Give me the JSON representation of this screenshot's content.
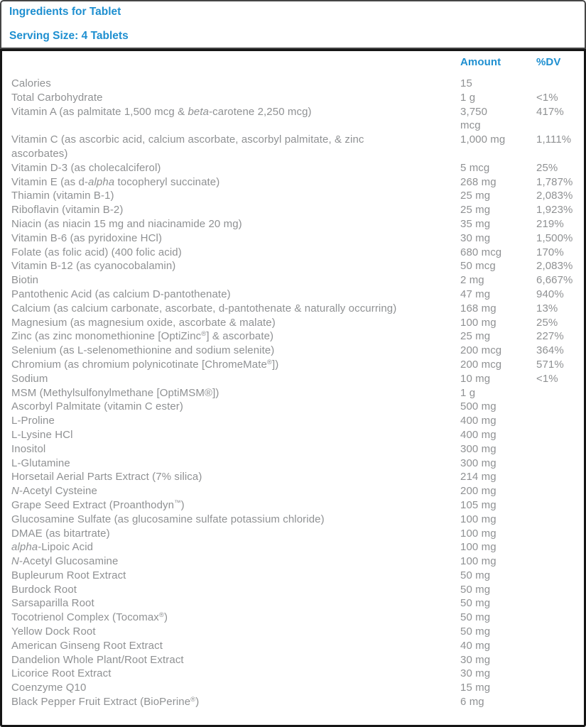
{
  "colors": {
    "accent": "#1e8fd0",
    "body_text": "#8f9193",
    "header_border": "#454545",
    "table_border": "#151515"
  },
  "header": {
    "title": "Ingredients for Tablet",
    "serving_size": "Serving Size: 4 Tablets"
  },
  "table": {
    "columns": {
      "amount": "Amount",
      "dv": "%DV"
    },
    "rows": [
      {
        "name": [
          {
            "t": "Calories"
          }
        ],
        "amount": "15",
        "dv": ""
      },
      {
        "name": [
          {
            "t": "Total Carbohydrate"
          }
        ],
        "amount": "1 g",
        "dv": "<1%"
      },
      {
        "name": [
          {
            "t": "Vitamin A (as palmitate 1,500 mcg & "
          },
          {
            "t": "beta",
            "i": true
          },
          {
            "t": "-carotene 2,250 mcg)"
          }
        ],
        "amount": "3,750 mcg",
        "dv": "417%"
      },
      {
        "name": [
          {
            "t": "Vitamin C (as ascorbic acid, calcium ascorbate, ascorbyl palmitate, & zinc ascorbates)"
          }
        ],
        "amount": "1,000 mg",
        "dv": "1,111%"
      },
      {
        "name": [
          {
            "t": "Vitamin D-3 (as cholecalciferol)"
          }
        ],
        "amount": "5 mcg",
        "dv": "25%"
      },
      {
        "name": [
          {
            "t": "Vitamin E (as d-"
          },
          {
            "t": "alpha",
            "i": true
          },
          {
            "t": " tocopheryl succinate)"
          }
        ],
        "amount": "268 mg",
        "dv": "1,787%"
      },
      {
        "name": [
          {
            "t": "Thiamin (vitamin B-1)"
          }
        ],
        "amount": "25 mg",
        "dv": "2,083%"
      },
      {
        "name": [
          {
            "t": "Riboflavin (vitamin B-2)"
          }
        ],
        "amount": "25 mg",
        "dv": "1,923%"
      },
      {
        "name": [
          {
            "t": "Niacin (as niacin 15 mg and niacinamide 20 mg)"
          }
        ],
        "amount": "35 mg",
        "dv": "219%"
      },
      {
        "name": [
          {
            "t": "Vitamin B-6 (as pyridoxine HCl)"
          }
        ],
        "amount": "30 mg",
        "dv": "1,500%"
      },
      {
        "name": [
          {
            "t": "Folate (as folic acid) (400 folic acid)"
          }
        ],
        "amount": "680 mcg",
        "dv": "170%"
      },
      {
        "name": [
          {
            "t": "Vitamin B-12 (as cyanocobalamin)"
          }
        ],
        "amount": "50 mcg",
        "dv": "2,083%"
      },
      {
        "name": [
          {
            "t": "Biotin"
          }
        ],
        "amount": "2 mg",
        "dv": "6,667%"
      },
      {
        "name": [
          {
            "t": "Pantothenic Acid (as calcium D-pantothenate)"
          }
        ],
        "amount": "47 mg",
        "dv": "940%"
      },
      {
        "name": [
          {
            "t": "Calcium (as calcium carbonate, ascorbate, d-pantothenate & naturally occurring)"
          }
        ],
        "amount": "168 mg",
        "dv": "13%"
      },
      {
        "name": [
          {
            "t": "Magnesium (as magnesium oxide, ascorbate & malate)"
          }
        ],
        "amount": "100 mg",
        "dv": "25%"
      },
      {
        "name": [
          {
            "t": "Zinc (as zinc monomethionine [OptiZinc"
          },
          {
            "t": "®",
            "sup": true
          },
          {
            "t": "] & ascorbate)"
          }
        ],
        "amount": "25 mg",
        "dv": "227%"
      },
      {
        "name": [
          {
            "t": "Selenium (as L-selenomethionine and sodium selenite)"
          }
        ],
        "amount": "200 mcg",
        "dv": "364%"
      },
      {
        "name": [
          {
            "t": "Chromium (as chromium polynicotinate [ChromeMate"
          },
          {
            "t": "®",
            "sup": true
          },
          {
            "t": "])"
          }
        ],
        "amount": "200 mcg",
        "dv": "571%"
      },
      {
        "name": [
          {
            "t": "Sodium"
          }
        ],
        "amount": "10 mg",
        "dv": "<1%"
      },
      {
        "name": [
          {
            "t": "MSM (Methylsulfonylmethane [OptiMSM®])"
          }
        ],
        "amount": "1 g",
        "dv": ""
      },
      {
        "name": [
          {
            "t": "Ascorbyl Palmitate (vitamin C ester)"
          }
        ],
        "amount": "500 mg",
        "dv": ""
      },
      {
        "name": [
          {
            "t": "L-Proline"
          }
        ],
        "amount": "400 mg",
        "dv": ""
      },
      {
        "name": [
          {
            "t": "L-Lysine HCl"
          }
        ],
        "amount": "400 mg",
        "dv": ""
      },
      {
        "name": [
          {
            "t": "Inositol"
          }
        ],
        "amount": "300 mg",
        "dv": ""
      },
      {
        "name": [
          {
            "t": "L-Glutamine"
          }
        ],
        "amount": "300 mg",
        "dv": ""
      },
      {
        "name": [
          {
            "t": "Horsetail Aerial Parts Extract (7% silica)"
          }
        ],
        "amount": "214 mg",
        "dv": ""
      },
      {
        "name": [
          {
            "t": "N",
            "i": true
          },
          {
            "t": "-Acetyl Cysteine"
          }
        ],
        "amount": "200 mg",
        "dv": ""
      },
      {
        "name": [
          {
            "t": "Grape Seed Extract (Proanthodyn"
          },
          {
            "t": "™",
            "sup": true
          },
          {
            "t": ")"
          }
        ],
        "amount": "105 mg",
        "dv": ""
      },
      {
        "name": [
          {
            "t": "Glucosamine Sulfate (as glucosamine sulfate potassium chloride)"
          }
        ],
        "amount": "100 mg",
        "dv": ""
      },
      {
        "name": [
          {
            "t": "DMAE (as bitartrate)"
          }
        ],
        "amount": "100 mg",
        "dv": ""
      },
      {
        "name": [
          {
            "t": "alpha",
            "i": true
          },
          {
            "t": "-Lipoic Acid"
          }
        ],
        "amount": "100 mg",
        "dv": ""
      },
      {
        "name": [
          {
            "t": "N",
            "i": true
          },
          {
            "t": "-Acetyl Glucosamine"
          }
        ],
        "amount": "100 mg",
        "dv": ""
      },
      {
        "name": [
          {
            "t": "Bupleurum Root Extract"
          }
        ],
        "amount": "50 mg",
        "dv": ""
      },
      {
        "name": [
          {
            "t": "Burdock Root"
          }
        ],
        "amount": "50 mg",
        "dv": ""
      },
      {
        "name": [
          {
            "t": "Sarsaparilla Root"
          }
        ],
        "amount": "50 mg",
        "dv": ""
      },
      {
        "name": [
          {
            "t": "Tocotrienol Complex (Tocomax"
          },
          {
            "t": "®",
            "sup": true
          },
          {
            "t": ")"
          }
        ],
        "amount": "50 mg",
        "dv": ""
      },
      {
        "name": [
          {
            "t": "Yellow Dock Root"
          }
        ],
        "amount": "50 mg",
        "dv": ""
      },
      {
        "name": [
          {
            "t": "American Ginseng Root Extract"
          }
        ],
        "amount": "40 mg",
        "dv": ""
      },
      {
        "name": [
          {
            "t": "Dandelion Whole Plant/Root Extract"
          }
        ],
        "amount": "30 mg",
        "dv": ""
      },
      {
        "name": [
          {
            "t": "Licorice Root Extract"
          }
        ],
        "amount": "30 mg",
        "dv": ""
      },
      {
        "name": [
          {
            "t": "Coenzyme Q10"
          }
        ],
        "amount": "15 mg",
        "dv": ""
      },
      {
        "name": [
          {
            "t": "Black Pepper Fruit Extract (BioPerine"
          },
          {
            "t": "®",
            "sup": true
          },
          {
            "t": ")"
          }
        ],
        "amount": "6 mg",
        "dv": ""
      }
    ]
  }
}
